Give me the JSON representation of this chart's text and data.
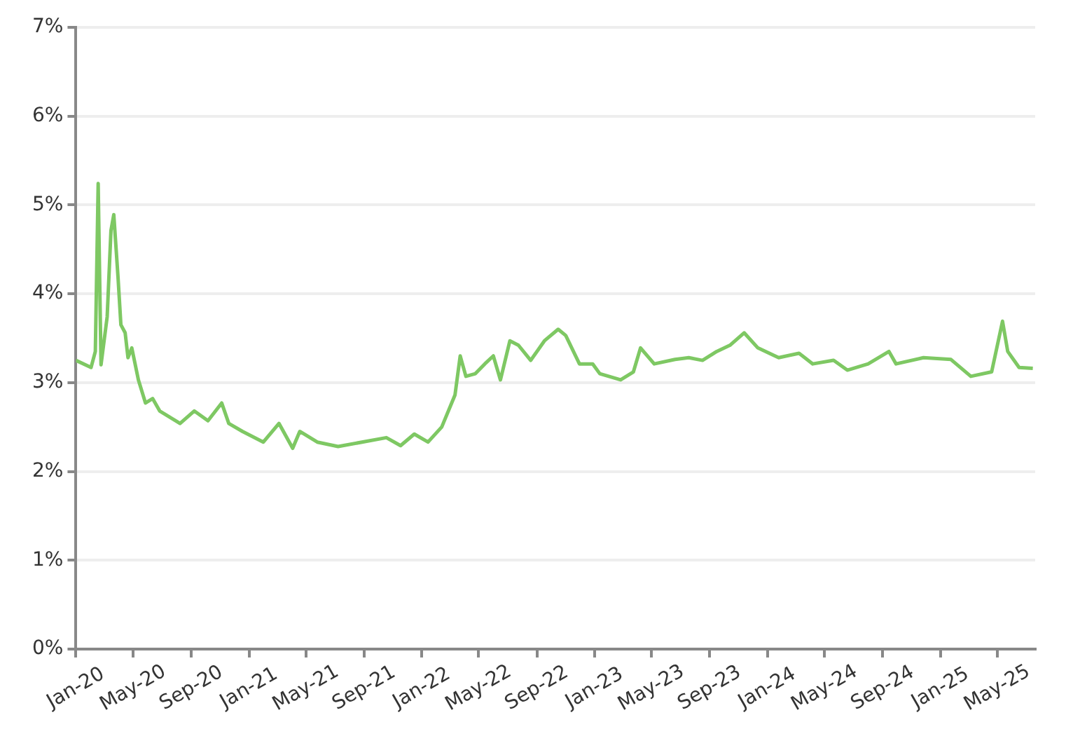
{
  "chart_data": {
    "type": "line",
    "xlim": [
      "2020-01-01",
      "2025-07-20"
    ],
    "xticks": [
      {
        "value": "2020-01",
        "label": "Jan-20"
      },
      {
        "value": "2020-05",
        "label": "May-20"
      },
      {
        "value": "2020-09",
        "label": "Sep-20"
      },
      {
        "value": "2021-01",
        "label": "Jan-21"
      },
      {
        "value": "2021-05",
        "label": "May-21"
      },
      {
        "value": "2021-09",
        "label": "Sep-21"
      },
      {
        "value": "2022-01",
        "label": "Jan-22"
      },
      {
        "value": "2022-05",
        "label": "May-22"
      },
      {
        "value": "2022-09",
        "label": "Sep-22"
      },
      {
        "value": "2023-01",
        "label": "Jan-23"
      },
      {
        "value": "2023-05",
        "label": "May-23"
      },
      {
        "value": "2023-09",
        "label": "Sep-23"
      },
      {
        "value": "2024-01",
        "label": "Jan-24"
      },
      {
        "value": "2024-05",
        "label": "May-24"
      },
      {
        "value": "2024-09",
        "label": "Sep-24"
      },
      {
        "value": "2025-01",
        "label": "Jan-25"
      },
      {
        "value": "2025-05",
        "label": "May-25"
      }
    ],
    "ylim": [
      0,
      7
    ],
    "yticks": [
      {
        "value": 0,
        "label": "0%"
      },
      {
        "value": 1,
        "label": "1%"
      },
      {
        "value": 2,
        "label": "2%"
      },
      {
        "value": 3,
        "label": "3%"
      },
      {
        "value": 4,
        "label": "4%"
      },
      {
        "value": 5,
        "label": "5%"
      },
      {
        "value": 6,
        "label": "6%"
      },
      {
        "value": 7,
        "label": "7%"
      }
    ],
    "grid": "y",
    "marker": "none",
    "line_style": "solid",
    "series": [
      {
        "color": "#7ec863",
        "x": [
          "2020-01-01",
          "2020-02-02",
          "2020-02-11",
          "2020-02-17",
          "2020-02-23",
          "2020-03-07",
          "2020-03-15",
          "2020-03-21",
          "2020-03-30",
          "2020-04-05",
          "2020-04-14",
          "2020-04-20",
          "2020-04-28",
          "2020-05-12",
          "2020-05-27",
          "2020-06-11",
          "2020-06-26",
          "2020-08-08",
          "2020-09-07",
          "2020-10-06",
          "2020-11-04",
          "2020-11-19",
          "2020-12-18",
          "2021-01-31",
          "2021-03-05",
          "2021-04-03",
          "2021-04-18",
          "2021-05-25",
          "2021-07-08",
          "2021-10-18",
          "2021-11-17",
          "2021-12-16",
          "2022-01-14",
          "2022-02-12",
          "2022-03-12",
          "2022-03-23",
          "2022-04-04",
          "2022-04-24",
          "2022-05-14",
          "2022-06-01",
          "2022-06-16",
          "2022-07-06",
          "2022-07-24",
          "2022-08-19",
          "2022-09-17",
          "2022-10-16",
          "2022-11-01",
          "2022-11-30",
          "2022-12-28",
          "2023-01-12",
          "2023-02-25",
          "2023-03-24",
          "2023-04-08",
          "2023-05-07",
          "2023-06-20",
          "2023-07-19",
          "2023-08-17",
          "2023-09-16",
          "2023-10-14",
          "2023-11-13",
          "2023-12-12",
          "2024-01-25",
          "2024-03-08",
          "2024-04-06",
          "2024-05-20",
          "2024-06-18",
          "2024-08-01",
          "2024-09-14",
          "2024-09-29",
          "2024-11-26",
          "2025-01-23",
          "2025-03-06",
          "2025-04-19",
          "2025-05-12",
          "2025-05-23",
          "2025-06-16",
          "2025-07-15"
        ],
        "values": [
          3.25,
          3.17,
          3.35,
          5.24,
          3.2,
          3.74,
          4.71,
          4.89,
          4.18,
          3.65,
          3.56,
          3.28,
          3.39,
          3.03,
          2.77,
          2.82,
          2.68,
          2.54,
          2.68,
          2.57,
          2.77,
          2.54,
          2.45,
          2.33,
          2.54,
          2.26,
          2.45,
          2.33,
          2.28,
          2.38,
          2.29,
          2.42,
          2.33,
          2.5,
          2.86,
          3.3,
          3.07,
          3.1,
          3.21,
          3.3,
          3.03,
          3.47,
          3.42,
          3.25,
          3.47,
          3.6,
          3.53,
          3.21,
          3.21,
          3.1,
          3.03,
          3.12,
          3.39,
          3.21,
          3.26,
          3.28,
          3.25,
          3.35,
          3.42,
          3.56,
          3.39,
          3.28,
          3.33,
          3.21,
          3.25,
          3.14,
          3.21,
          3.35,
          3.21,
          3.28,
          3.26,
          3.07,
          3.12,
          3.69,
          3.35,
          3.17,
          3.16
        ]
      }
    ]
  }
}
